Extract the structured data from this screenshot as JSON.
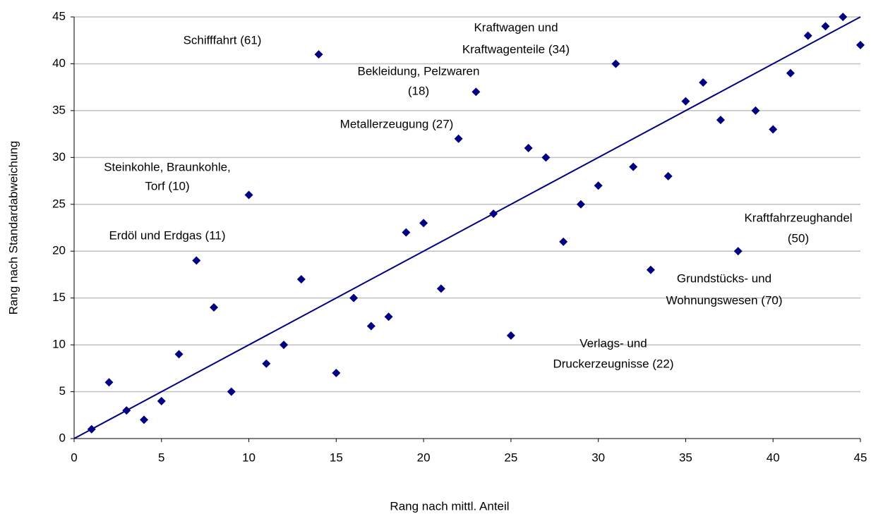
{
  "chart_data": {
    "type": "scatter",
    "x_label": "Rang nach mittl. Anteil",
    "y_label": "Rang nach Standardabweichung",
    "color": "#000080",
    "grid": true,
    "xlim": [
      0,
      45
    ],
    "ylim": [
      0,
      45
    ],
    "xticks": [
      0,
      5,
      10,
      15,
      20,
      25,
      30,
      35,
      40,
      45
    ],
    "yticks": [
      0,
      5,
      10,
      15,
      20,
      25,
      30,
      35,
      40,
      45
    ],
    "x": [
      1,
      2,
      3,
      4,
      5,
      6,
      7,
      8,
      9,
      10,
      11,
      12,
      13,
      14,
      15,
      16,
      17,
      18,
      19,
      20,
      21,
      22,
      23,
      24,
      25,
      26,
      27,
      28,
      29,
      30,
      31,
      32,
      33,
      34,
      35,
      36,
      37,
      38,
      39,
      40,
      41,
      42,
      43,
      44,
      45
    ],
    "y": [
      1,
      6,
      3,
      2,
      4,
      9,
      19,
      14,
      5,
      26,
      8,
      10,
      17,
      41,
      7,
      15,
      12,
      13,
      22,
      23,
      16,
      32,
      37,
      24,
      11,
      31,
      30,
      21,
      25,
      27,
      40,
      29,
      18,
      28,
      36,
      38,
      34,
      20,
      35,
      33,
      39,
      43,
      44,
      45,
      42
    ],
    "reference_line": {
      "x": [
        0,
        45
      ],
      "y": [
        0,
        45
      ]
    },
    "annotations": [
      [
        "Schifffahrt (61)"
      ],
      [
        "Kraftwagen und",
        "Kraftwagenteile (34)"
      ],
      [
        "Bekleidung, Pelzwaren",
        "(18)"
      ],
      [
        "Metallerzeugung (27)"
      ],
      [
        "Steinkohle, Braunkohle,",
        "Torf (10)"
      ],
      [
        "Erdöl und Erdgas (11)"
      ],
      [
        "Kraftfahrzeughandel",
        "(50)"
      ],
      [
        "Grundstücks- und",
        "Wohnungswesen (70)"
      ],
      [
        "Verlags- und",
        "Druckerzeugnisse (22)"
      ]
    ]
  }
}
